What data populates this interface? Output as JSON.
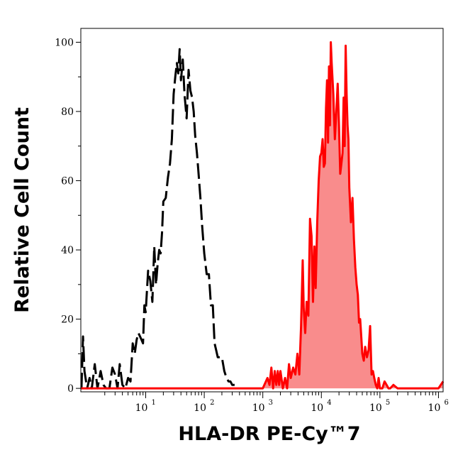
{
  "chart_data": {
    "type": "area",
    "xlabel": "HLA-DR PE-Cy™7",
    "ylabel": "Relative Cell Count",
    "x_scale": "log",
    "xlim": [
      0.78,
      1200000
    ],
    "ylim": [
      -1,
      104
    ],
    "x_ticks": [
      {
        "value": 10,
        "base": "10",
        "exp": "1"
      },
      {
        "value": 100,
        "base": "10",
        "exp": "2"
      },
      {
        "value": 1000,
        "base": "10",
        "exp": "3"
      },
      {
        "value": 10000,
        "base": "10",
        "exp": "4"
      },
      {
        "value": 100000,
        "base": "10",
        "exp": "5"
      },
      {
        "value": 1000000,
        "base": "10",
        "exp": "6"
      }
    ],
    "y_ticks": [
      {
        "value": 0,
        "label": "0"
      },
      {
        "value": 20,
        "label": "20"
      },
      {
        "value": 40,
        "label": "40"
      },
      {
        "value": 60,
        "label": "60"
      },
      {
        "value": 80,
        "label": "80"
      },
      {
        "value": 100,
        "label": "100"
      }
    ],
    "grid": false,
    "series": [
      {
        "style": "dashed",
        "color": "#000000",
        "fill": "none",
        "x": [
          0.8,
          0.85,
          0.9,
          1.0,
          1.1,
          1.2,
          1.35,
          1.5,
          1.7,
          1.9,
          2.1,
          2.4,
          2.7,
          3.0,
          3.3,
          3.6,
          4.0,
          4.5,
          5.0,
          5.5,
          6.0,
          6.5,
          7.0,
          7.5,
          8.0,
          8.5,
          9.0,
          9.5,
          10.0,
          11.0,
          12.0,
          13.0,
          14.0,
          15.0,
          16.0,
          17.0,
          18.0,
          19.0,
          20.0,
          22.0,
          24.0,
          26.0,
          28.0,
          30.0,
          32.0,
          34.0,
          36.0,
          38.0,
          40.0,
          43.0,
          46.0,
          50.0,
          54.0,
          58.0,
          62.0,
          66.0,
          70.0,
          75.0,
          80.0,
          86.0,
          92.0,
          100.0,
          110.0,
          120.0,
          130.0,
          140.0,
          150.0,
          160.0,
          170.0,
          180.0,
          200.0,
          220.0,
          240.0,
          260.0,
          280.0,
          300.0,
          330.0
        ],
        "y": [
          0,
          15,
          5,
          0,
          3,
          0,
          7,
          0,
          5,
          1,
          0,
          0,
          6,
          4,
          0,
          7,
          1,
          0,
          3,
          2,
          13,
          10,
          14,
          16,
          15,
          14,
          13,
          24,
          22,
          34,
          31,
          25,
          41,
          30,
          36,
          40,
          39,
          45,
          54,
          55,
          61,
          65,
          72,
          85,
          90,
          94,
          91,
          98,
          89,
          95,
          85,
          78,
          92,
          86,
          84,
          80,
          73,
          68,
          62,
          55,
          47,
          39,
          33,
          33,
          24,
          24,
          13,
          11,
          9,
          9,
          9,
          5,
          3,
          2,
          2,
          1,
          1
        ]
      },
      {
        "style": "solid",
        "color": "#ff0000",
        "fill": "#f98c8c",
        "x": [
          0.78,
          1000,
          1200,
          1300,
          1400,
          1500,
          1600,
          1700,
          1800,
          1900,
          2000,
          2200,
          2400,
          2600,
          2800,
          3000,
          3300,
          3600,
          3900,
          4200,
          4500,
          4800,
          5000,
          5300,
          5600,
          6000,
          6400,
          6800,
          7200,
          7600,
          8000,
          8500,
          9000,
          9500,
          10000,
          10500,
          11000,
          11500,
          12000,
          12500,
          13000,
          13500,
          14000,
          14500,
          15000,
          16000,
          17000,
          18000,
          19000,
          20000,
          21000,
          22000,
          23000,
          24000,
          25000,
          26000,
          27000,
          28000,
          29000,
          30000,
          32000,
          34000,
          36000,
          38000,
          40000,
          42000,
          44000,
          46000,
          48000,
          50000,
          53000,
          56000,
          60000,
          64000,
          68000,
          72000,
          76000,
          80000,
          85000,
          90000,
          95000,
          100000,
          110000,
          120000,
          130000,
          140000,
          150000,
          170000,
          200000,
          1000000,
          1200000
        ],
        "y": [
          0,
          0,
          3,
          1,
          6,
          0,
          5,
          1,
          5,
          1,
          5,
          0,
          3,
          0,
          7,
          3,
          6,
          4,
          10,
          4,
          18,
          37,
          23,
          16,
          25,
          21,
          49,
          44,
          25,
          41,
          29,
          48,
          60,
          67,
          68,
          72,
          64,
          65,
          81,
          89,
          71,
          93,
          76,
          100,
          94,
          85,
          72,
          80,
          88,
          76,
          62,
          65,
          68,
          84,
          70,
          99,
          85,
          76,
          72,
          58,
          48,
          55,
          43,
          35,
          30,
          27,
          19,
          20,
          15,
          10,
          8,
          12,
          9,
          11,
          18,
          4,
          5,
          3,
          1,
          0,
          3,
          0,
          0,
          2,
          1,
          0,
          0,
          1,
          0,
          0,
          2
        ]
      }
    ]
  }
}
